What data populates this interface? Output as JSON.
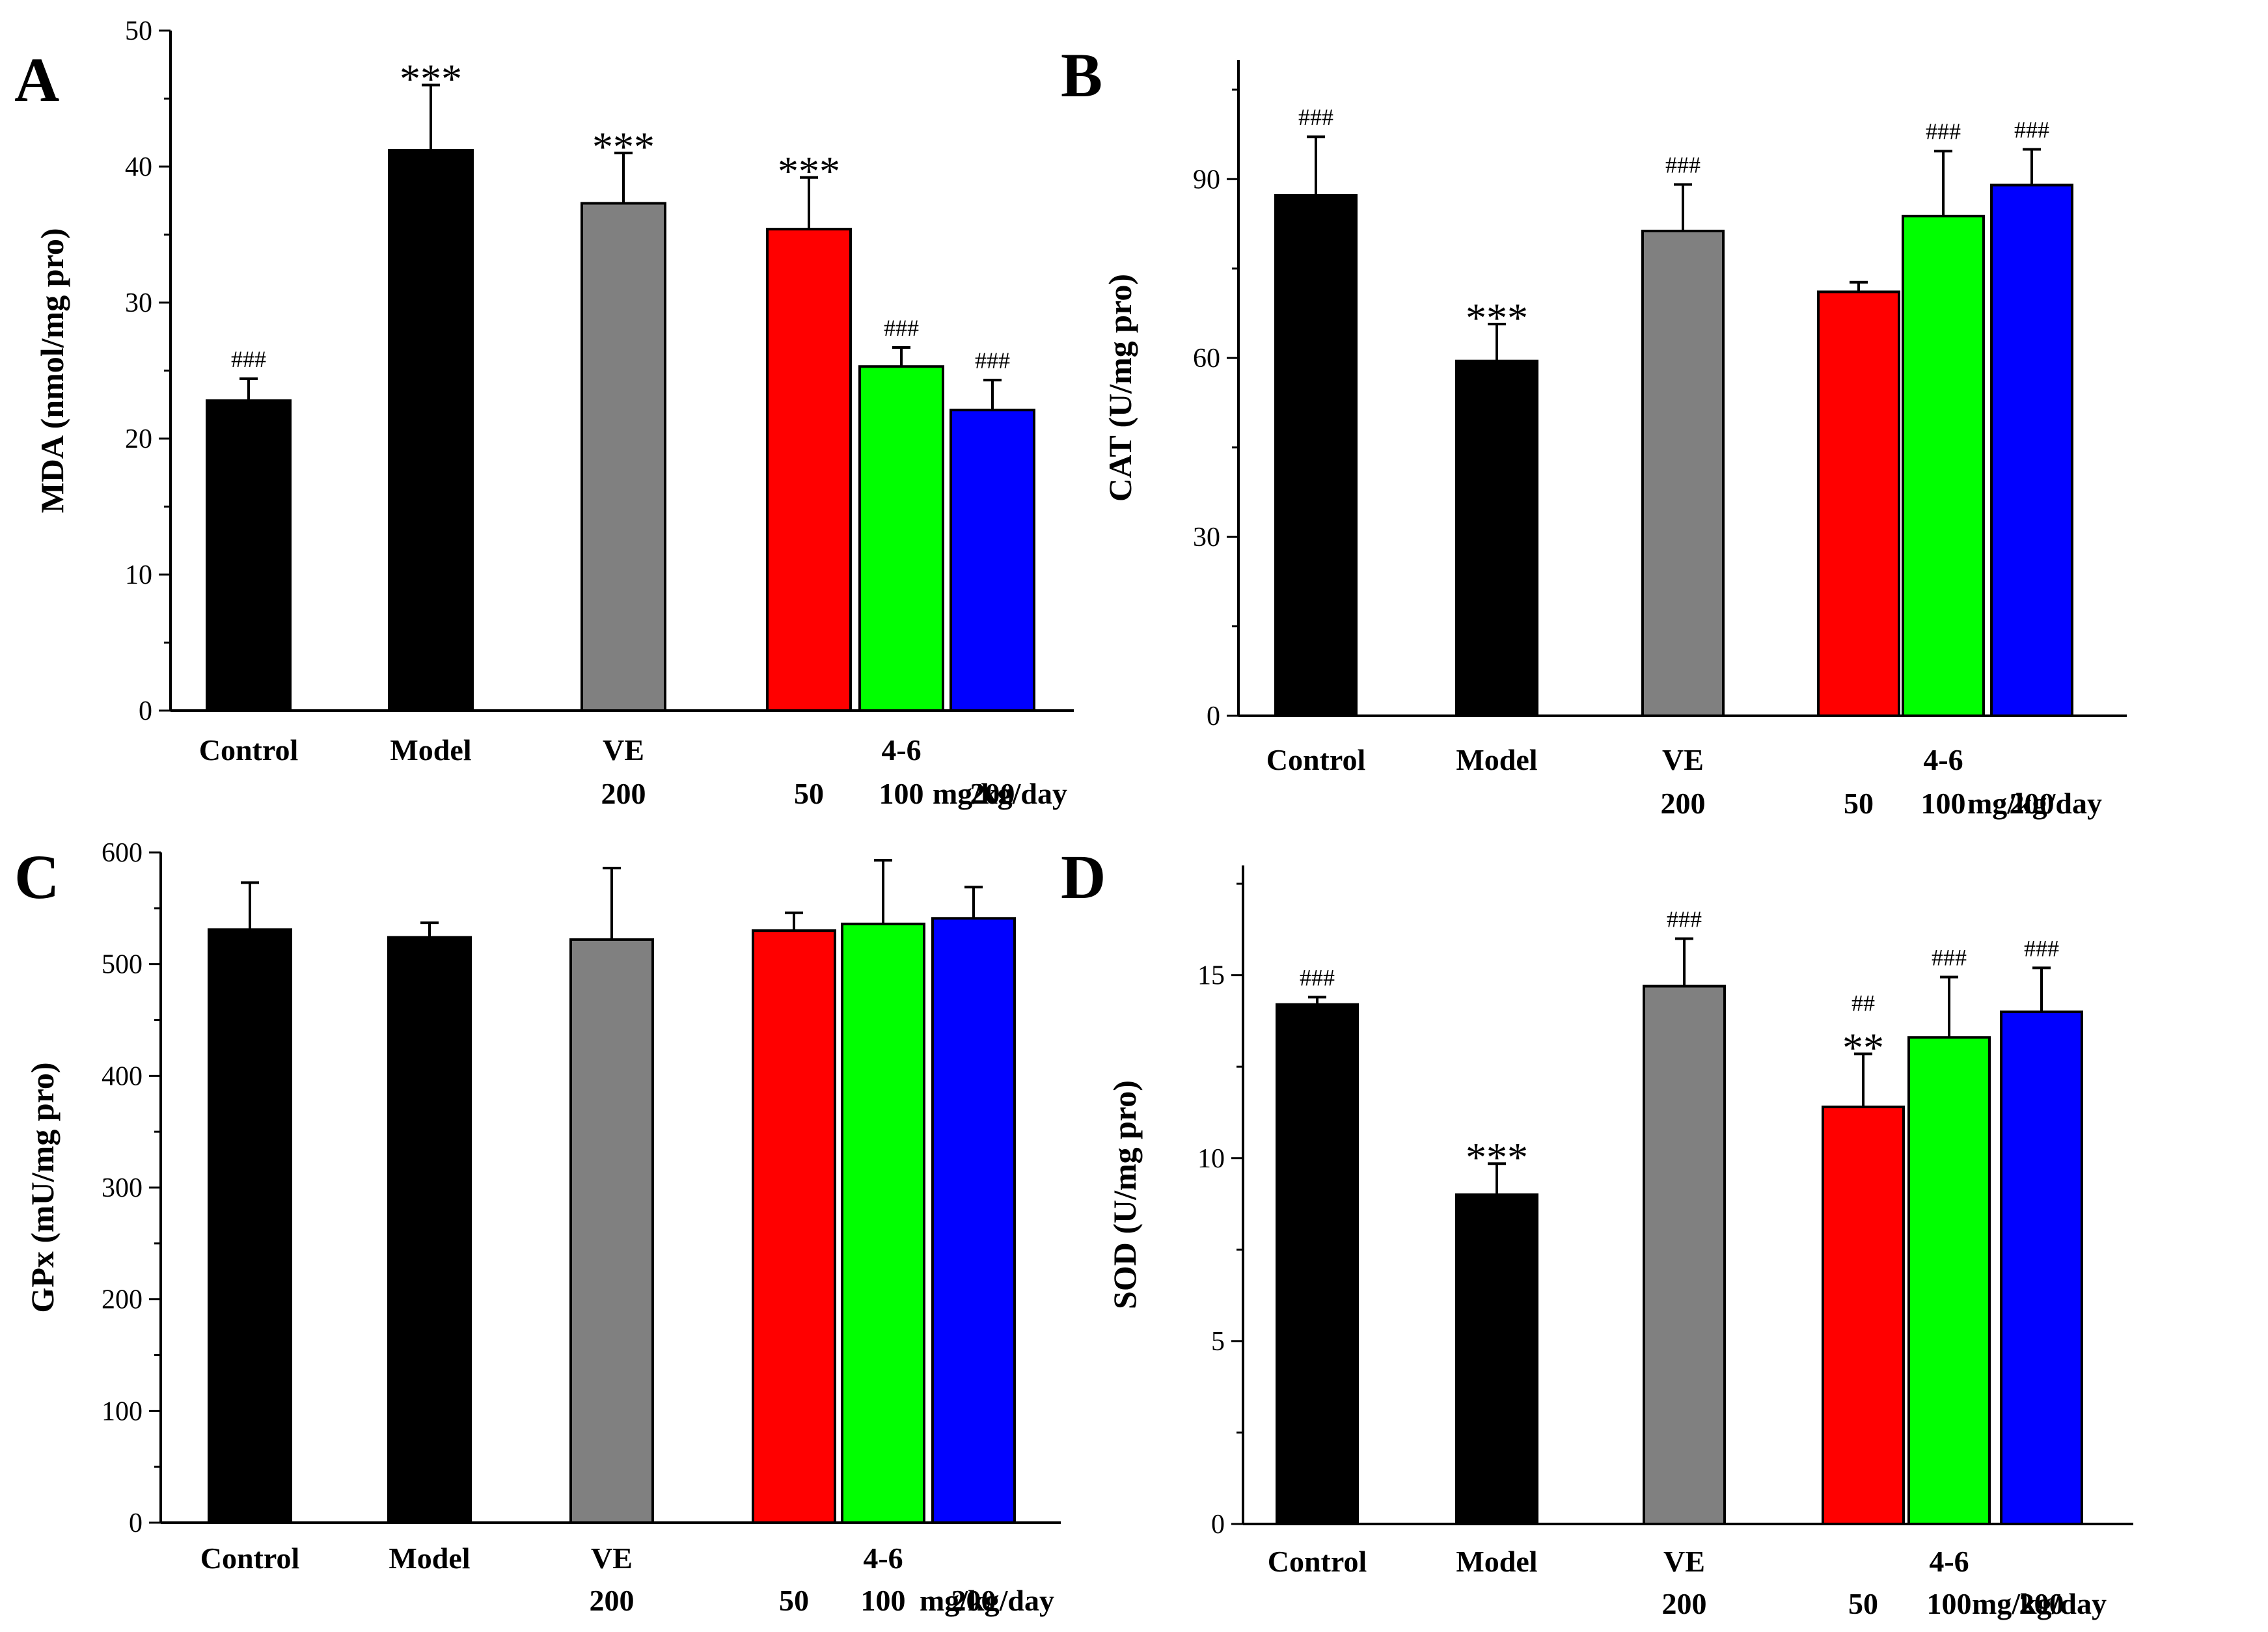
{
  "chart_data": [
    {
      "panel": "A",
      "type": "bar",
      "categories": [
        "Control",
        "Model",
        "VE",
        "4-6",
        "4-6",
        "4-6"
      ],
      "doses": [
        "",
        "",
        "200",
        "50",
        "100",
        "200"
      ],
      "dose_unit": "mg/kg/day",
      "values": [
        22.8,
        41.2,
        37.3,
        35.4,
        25.3,
        22.1
      ],
      "errors": [
        1.6,
        4.8,
        3.7,
        3.8,
        1.4,
        2.2
      ],
      "colors": [
        "#000000",
        "#000000",
        "#808080",
        "#ff0000",
        "#00ff00",
        "#0000ff"
      ],
      "annotations": [
        "###",
        "***",
        "***",
        "***",
        "###",
        "###"
      ],
      "ylabel": "MDA   (nmol/mg pro)",
      "ylim": [
        0,
        50
      ],
      "yticks": [
        0,
        10,
        20,
        30,
        40,
        50
      ]
    },
    {
      "panel": "B",
      "type": "bar",
      "categories": [
        "Control",
        "Model",
        "VE",
        "4-6",
        "4-6",
        "4-6"
      ],
      "doses": [
        "",
        "",
        "200",
        "50",
        "100",
        "200"
      ],
      "dose_unit": "mg/kg/day",
      "values": [
        87.3,
        59.5,
        81.3,
        71.1,
        83.8,
        89.0
      ],
      "errors": [
        9.8,
        6.2,
        7.8,
        1.6,
        10.9,
        6.0
      ],
      "colors": [
        "#000000",
        "#000000",
        "#808080",
        "#ff0000",
        "#00ff00",
        "#0000ff"
      ],
      "annotations": [
        "###",
        "***",
        "###",
        "",
        "###",
        "###"
      ],
      "ylabel": "CAT (U/mg pro)",
      "ylim": [
        0,
        110
      ],
      "yticks": [
        0,
        30,
        60,
        90
      ]
    },
    {
      "panel": "C",
      "type": "bar",
      "categories": [
        "Control",
        "Model",
        "VE",
        "4-6",
        "4-6",
        "4-6"
      ],
      "doses": [
        "",
        "",
        "200",
        "50",
        "100",
        "200"
      ],
      "dose_unit": "mg/kg/day",
      "values": [
        531,
        524,
        522,
        530,
        536,
        541
      ],
      "errors": [
        42,
        13,
        64,
        16,
        57,
        28
      ],
      "colors": [
        "#000000",
        "#000000",
        "#808080",
        "#ff0000",
        "#00ff00",
        "#0000ff"
      ],
      "annotations": [
        "",
        "",
        "",
        "",
        "",
        ""
      ],
      "ylabel": "GPx (mU/mg pro)",
      "ylim": [
        0,
        600
      ],
      "yticks": [
        0,
        100,
        200,
        300,
        400,
        500,
        600
      ]
    },
    {
      "panel": "D",
      "type": "bar",
      "categories": [
        "Control",
        "Model",
        "VE",
        "4-6",
        "4-6",
        "4-6"
      ],
      "doses": [
        "",
        "",
        "200",
        "50",
        "100",
        "200"
      ],
      "dose_unit": "mg/kg/day",
      "values": [
        14.2,
        9.0,
        14.7,
        11.4,
        13.3,
        14.0
      ],
      "errors": [
        0.2,
        0.85,
        1.3,
        1.45,
        1.65,
        1.2
      ],
      "colors": [
        "#000000",
        "#000000",
        "#808080",
        "#ff0000",
        "#00ff00",
        "#0000ff"
      ],
      "annotations": [
        "###",
        "***",
        "###",
        "##\n**",
        "###",
        "###"
      ],
      "ylabel": "SOD (U/mg pro)",
      "ylim": [
        0,
        18
      ],
      "yticks": [
        0,
        5,
        10,
        15
      ]
    }
  ]
}
